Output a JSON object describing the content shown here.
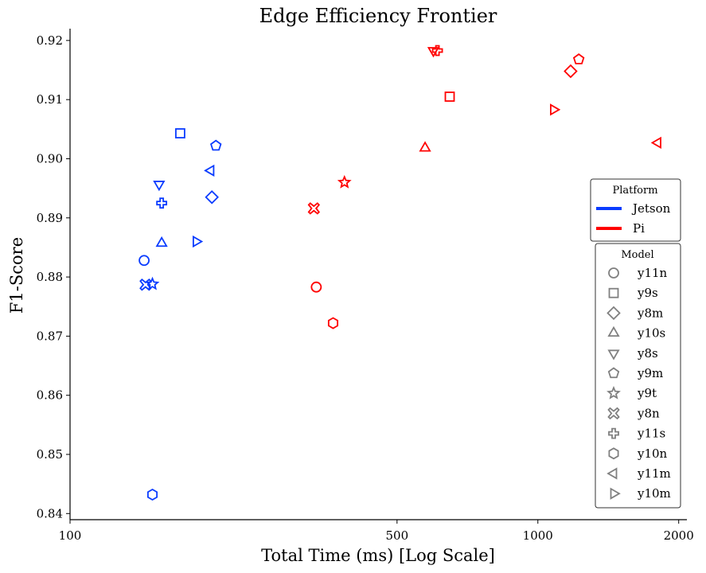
{
  "chart_data": {
    "type": "scatter",
    "title": "Edge Efficiency Frontier",
    "xlabel": "Total Time (ms) [Log Scale]",
    "ylabel": "F1-Score",
    "x_scale": "log",
    "xlim": [
      100,
      2050
    ],
    "ylim": [
      0.8395,
      0.922
    ],
    "x_ticks": [
      100,
      500,
      1000,
      2000
    ],
    "x_tick_labels": [
      "100",
      "500",
      "1000",
      "2000"
    ],
    "y_ticks": [
      0.84,
      0.85,
      0.86,
      0.87,
      0.88,
      0.89,
      0.9,
      0.91,
      0.92
    ],
    "y_tick_labels": [
      "0.84",
      "0.85",
      "0.86",
      "0.87",
      "0.88",
      "0.89",
      "0.90",
      "0.91",
      "0.92"
    ],
    "grid": false,
    "platform_legend": {
      "title": "Platform",
      "location": "right",
      "entries": [
        {
          "label": "Jetson",
          "color": "#0a3cff"
        },
        {
          "label": "Pi",
          "color": "#ff0000"
        }
      ]
    },
    "model_legend": {
      "title": "Model",
      "location": "lower right",
      "entries": [
        {
          "label": "y11n",
          "marker": "circle"
        },
        {
          "label": "y9s",
          "marker": "square"
        },
        {
          "label": "y8m",
          "marker": "diamond"
        },
        {
          "label": "y10s",
          "marker": "triangle-up"
        },
        {
          "label": "y8s",
          "marker": "triangle-down"
        },
        {
          "label": "y9m",
          "marker": "pentagon"
        },
        {
          "label": "y9t",
          "marker": "star"
        },
        {
          "label": "y8n",
          "marker": "x-filled"
        },
        {
          "label": "y11s",
          "marker": "plus-filled"
        },
        {
          "label": "y10n",
          "marker": "hexagon"
        },
        {
          "label": "y11m",
          "marker": "triangle-left"
        },
        {
          "label": "y10m",
          "marker": "triangle-right"
        }
      ]
    },
    "series": [
      {
        "platform": "Jetson",
        "color": "#0a3cff",
        "points": [
          {
            "model": "y11n",
            "marker": "circle",
            "x": 144,
            "y": 0.8828
          },
          {
            "model": "y9s",
            "marker": "square",
            "x": 172,
            "y": 0.9043
          },
          {
            "model": "y8m",
            "marker": "diamond",
            "x": 201,
            "y": 0.8935
          },
          {
            "model": "y10s",
            "marker": "triangle-up",
            "x": 157,
            "y": 0.8857
          },
          {
            "model": "y8s",
            "marker": "triangle-down",
            "x": 155,
            "y": 0.8957
          },
          {
            "model": "y9m",
            "marker": "pentagon",
            "x": 205,
            "y": 0.9022
          },
          {
            "model": "y9t",
            "marker": "star",
            "x": 150,
            "y": 0.8788
          },
          {
            "model": "y8n",
            "marker": "x-filled",
            "x": 145,
            "y": 0.8787
          },
          {
            "model": "y11s",
            "marker": "plus-filled",
            "x": 157,
            "y": 0.8925
          },
          {
            "model": "y10n",
            "marker": "hexagon",
            "x": 150,
            "y": 0.8432
          },
          {
            "model": "y11m",
            "marker": "triangle-left",
            "x": 200,
            "y": 0.898
          },
          {
            "model": "y10m",
            "marker": "triangle-right",
            "x": 186,
            "y": 0.886
          }
        ]
      },
      {
        "platform": "Pi",
        "color": "#ff0000",
        "points": [
          {
            "model": "y11n",
            "marker": "circle",
            "x": 336,
            "y": 0.8783
          },
          {
            "model": "y9s",
            "marker": "square",
            "x": 648,
            "y": 0.9105
          },
          {
            "model": "y8m",
            "marker": "diamond",
            "x": 1175,
            "y": 0.9148
          },
          {
            "model": "y10s",
            "marker": "triangle-up",
            "x": 574,
            "y": 0.9018
          },
          {
            "model": "y8s",
            "marker": "triangle-down",
            "x": 598,
            "y": 0.9183
          },
          {
            "model": "y9m",
            "marker": "pentagon",
            "x": 1223,
            "y": 0.9168
          },
          {
            "model": "y9t",
            "marker": "star",
            "x": 386,
            "y": 0.896
          },
          {
            "model": "y8n",
            "marker": "x-filled",
            "x": 332,
            "y": 0.8916
          },
          {
            "model": "y11s",
            "marker": "plus-filled",
            "x": 610,
            "y": 0.9183
          },
          {
            "model": "y10n",
            "marker": "hexagon",
            "x": 365,
            "y": 0.8722
          },
          {
            "model": "y11m",
            "marker": "triangle-left",
            "x": 1805,
            "y": 0.9027
          },
          {
            "model": "y10m",
            "marker": "triangle-right",
            "x": 1080,
            "y": 0.9083
          }
        ]
      }
    ]
  }
}
